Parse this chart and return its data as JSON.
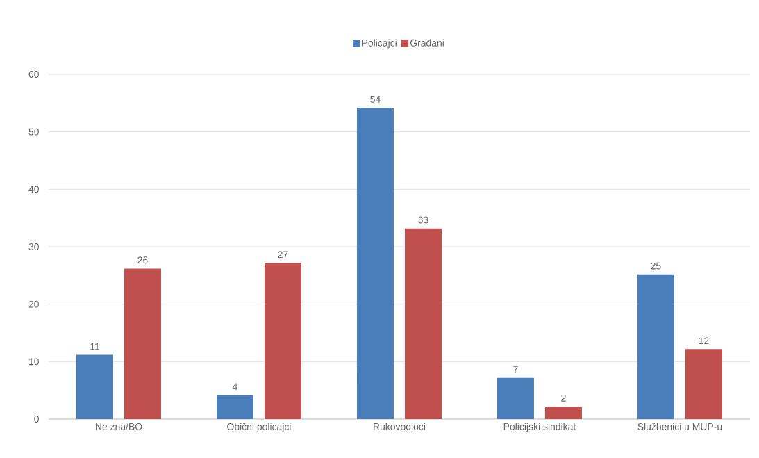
{
  "chart_data": {
    "type": "bar",
    "categories": [
      "Ne zna/BO",
      "Obični policajci",
      "Rukovodioci",
      "Policijski sindikat",
      "Službenici u MUP-u"
    ],
    "series": [
      {
        "name": "Policajci",
        "color": "#4a7ebb",
        "values": [
          11,
          4,
          54,
          7,
          25
        ]
      },
      {
        "name": "Građani",
        "color": "#c0504d",
        "values": [
          26,
          27,
          33,
          2,
          12
        ]
      }
    ],
    "ylim": [
      0,
      60
    ],
    "yticks": [
      0,
      10,
      20,
      30,
      40,
      50,
      60
    ],
    "grid": "y",
    "legend": "top",
    "data_labels": true
  }
}
